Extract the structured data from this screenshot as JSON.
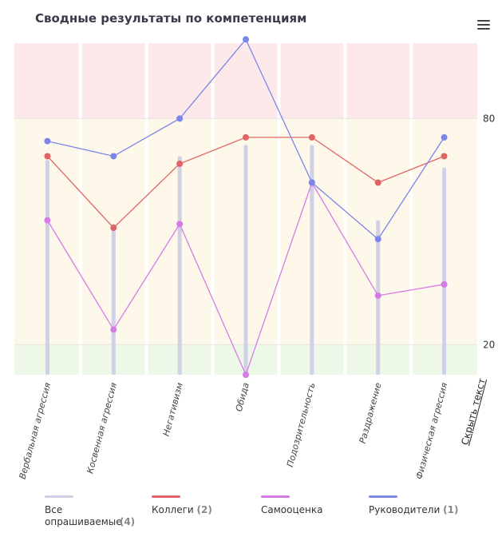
{
  "header": {
    "title": "Сводные результаты по компетенциям"
  },
  "toolbar": {
    "menu_icon": "hamburger-menu-icon"
  },
  "hide_text_label": "Скрыть текст",
  "colors": {
    "red_zone": "#fde9ea",
    "yellow_zone": "#fdf8e9",
    "green_zone": "#eef8e8",
    "all": "#d0d0e6",
    "colleagues": "#e06464",
    "self": "#d57be6",
    "managers": "#7b86e8"
  },
  "legend": [
    {
      "name": "Все опрашиваемые",
      "count": "(4)",
      "color": "#d0d0e6"
    },
    {
      "name": "Коллеги",
      "count": "(2)",
      "color": "#e06464"
    },
    {
      "name": "Самооценка",
      "count": "",
      "color": "#d57be6"
    },
    {
      "name": "Руководители",
      "count": "(1)",
      "color": "#7b86e8"
    }
  ],
  "chart_data": {
    "type": "line",
    "title": "Сводные результаты по компетенциям",
    "categories": [
      "Вербальная агрессия",
      "Косвенная агрессия",
      "Негативизм",
      "Обида",
      "Подозрительность",
      "Раздражение",
      "Физическая агрессия"
    ],
    "ylim": [
      12,
      100
    ],
    "yticks": [
      20,
      80
    ],
    "zones": [
      {
        "from": 80,
        "to": 100,
        "name": "red"
      },
      {
        "from": 20,
        "to": 80,
        "name": "yellow"
      },
      {
        "from": 12,
        "to": 20,
        "name": "green"
      }
    ],
    "bars": {
      "name": "Все опрашиваемые",
      "values": [
        69,
        52,
        70,
        73,
        73,
        53,
        67
      ]
    },
    "series": [
      {
        "name": "Коллеги",
        "values": [
          70,
          51,
          68,
          75,
          75,
          63,
          70
        ]
      },
      {
        "name": "Самооценка",
        "values": [
          53,
          24,
          52,
          12,
          63,
          33,
          36
        ]
      },
      {
        "name": "Руководители",
        "values": [
          74,
          70,
          80,
          101,
          63,
          48,
          75
        ]
      }
    ]
  }
}
